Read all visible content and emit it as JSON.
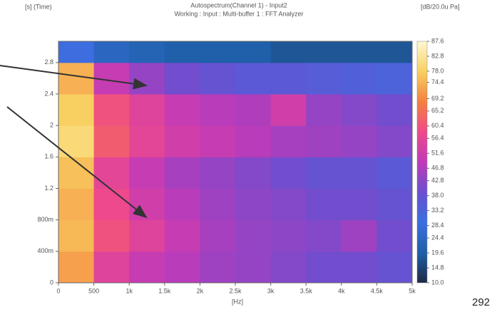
{
  "chart_data": {
    "type": "heatmap",
    "title": "Autospectrum(Channel 1) - Input2",
    "subtitle": "Working : Input : Multi-buffer 1 : FFT Analyzer",
    "y_label": "[s] (Time)",
    "x_label": "[Hz]",
    "colorbar_label": "[dB/20.0u Pa]",
    "page_number": "292",
    "x_bins": [
      0,
      500,
      1000,
      1500,
      2000,
      2500,
      3000,
      3500,
      4000,
      4500,
      5000
    ],
    "y_bins": [
      0,
      0.4,
      0.8,
      1.2,
      1.6,
      2.0,
      2.4,
      2.8,
      3.07
    ],
    "z": [
      [
        72,
        55,
        50,
        48,
        45,
        44,
        42,
        40,
        40,
        38
      ],
      [
        75,
        60,
        55,
        50,
        46,
        44,
        43,
        42,
        45,
        40
      ],
      [
        74,
        58,
        52,
        48,
        45,
        43,
        42,
        40,
        40,
        38
      ],
      [
        76,
        56,
        50,
        46,
        44,
        42,
        40,
        38,
        38,
        36
      ],
      [
        80,
        62,
        56,
        52,
        50,
        48,
        46,
        45,
        44,
        42
      ],
      [
        78,
        60,
        55,
        50,
        48,
        47,
        52,
        44,
        42,
        40
      ],
      [
        74,
        50,
        44,
        40,
        38,
        36,
        36,
        35,
        34,
        33
      ],
      [
        30,
        24,
        22,
        20,
        20,
        20,
        18,
        18,
        18,
        18
      ]
    ],
    "xlim": [
      0,
      5000
    ],
    "xticks": [
      0,
      500,
      {
        "value": 1000,
        "label": "1k"
      },
      {
        "value": 1500,
        "label": "1.5k"
      },
      {
        "value": 2000,
        "label": "2k"
      },
      {
        "value": 2500,
        "label": "2.5k"
      },
      {
        "value": 3000,
        "label": "3k"
      },
      {
        "value": 3500,
        "label": "3.5k"
      },
      {
        "value": 4000,
        "label": "4k"
      },
      {
        "value": 4500,
        "label": "4.5k"
      },
      {
        "value": 5000,
        "label": "5k"
      }
    ],
    "ylim": [
      0,
      3.07
    ],
    "yticks": [
      0,
      {
        "value": 0.4,
        "label": "400m"
      },
      {
        "value": 0.8,
        "label": "800m"
      },
      1.2,
      1.6,
      2,
      2.4,
      2.8
    ],
    "zlim": [
      10,
      87.6
    ],
    "zticks": [
      87.6,
      82.8,
      {
        "value": 78,
        "label": "78.0"
      },
      74.4,
      69.2,
      65.2,
      60.4,
      56.4,
      51.6,
      46.8,
      42.8,
      {
        "value": 38,
        "label": "38.0"
      },
      33.2,
      28.4,
      24.4,
      19.6,
      14.8,
      {
        "value": 10,
        "label": "10.0"
      }
    ],
    "colormap": [
      "#1c2a44",
      "#1f5fa8",
      "#3a6fe0",
      "#6a4fd0",
      "#c03ab8",
      "#ef4a8a",
      "#f5803f",
      "#f8d060",
      "#fff8d0"
    ]
  }
}
